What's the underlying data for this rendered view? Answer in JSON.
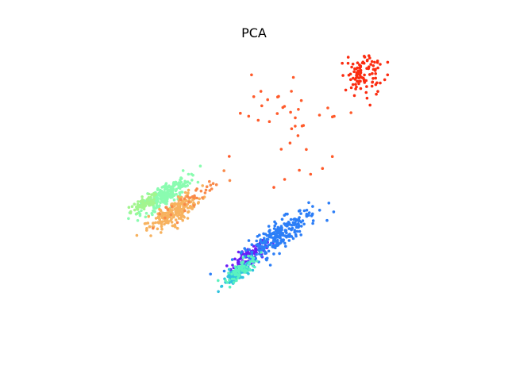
{
  "chart_data": {
    "type": "scatter",
    "title": "PCA",
    "xlabel": "",
    "ylabel": "",
    "axes_visible": false,
    "grid": false,
    "legend": "none",
    "xlim": [
      -4,
      4
    ],
    "ylim": [
      -3,
      3
    ],
    "colormap": "rainbow",
    "clusters": [
      {
        "color": "#6a1cf6",
        "center": [
          -0.2,
          -1.35
        ],
        "spread": [
          0.25,
          0.08
        ],
        "n": 90
      },
      {
        "color": "#2c7ef7",
        "center": [
          0.35,
          -0.95
        ],
        "spread": [
          0.45,
          0.12
        ],
        "n": 260
      },
      {
        "color": "#2fc3de",
        "center": [
          -0.45,
          -1.75
        ],
        "spread": [
          0.2,
          0.06
        ],
        "n": 90
      },
      {
        "color": "#5af2c0",
        "center": [
          -0.35,
          -1.6
        ],
        "spread": [
          0.2,
          0.07
        ],
        "n": 70
      },
      {
        "color": "#8afcb0",
        "center": [
          -1.95,
          -0.1
        ],
        "spread": [
          0.3,
          0.1
        ],
        "n": 240
      },
      {
        "color": "#a2f58e",
        "center": [
          -2.4,
          -0.3
        ],
        "spread": [
          0.15,
          0.06
        ],
        "n": 60
      },
      {
        "color": "#f7b25f",
        "center": [
          -1.75,
          -0.45
        ],
        "spread": [
          0.3,
          0.1
        ],
        "n": 220
      },
      {
        "color": "#f98a4a",
        "center": [
          -1.2,
          -0.05
        ],
        "spread": [
          0.55,
          0.08
        ],
        "n": 35
      },
      {
        "color": "#ff5a2a",
        "center": [
          0.65,
          1.5
        ],
        "spread": [
          0.4,
          0.55
        ],
        "n": 40
      },
      {
        "color": "#fb2c10",
        "center": [
          2.1,
          2.4
        ],
        "spread": [
          0.2,
          0.2
        ],
        "n": 100
      }
    ]
  }
}
